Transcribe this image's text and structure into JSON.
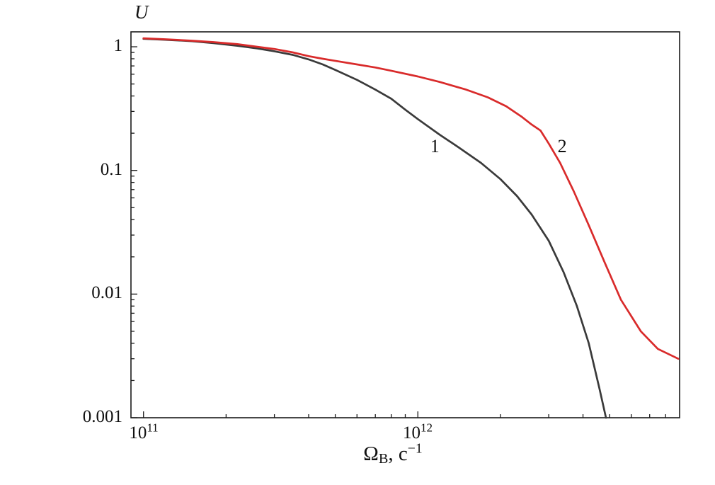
{
  "figure": {
    "background": "#ffffff",
    "ylabel": "U",
    "xlabel": {
      "base": "Ω",
      "sub": "B",
      "rest": ", c",
      "sup": "−1"
    }
  },
  "chart_data": {
    "type": "line",
    "title": "",
    "xlabel": "Ω_B, c^−1",
    "ylabel": "U",
    "xscale": "log",
    "yscale": "log",
    "xlim": [
      90000000000.0,
      9000000000000.0
    ],
    "ylim": [
      0.001,
      1.32
    ],
    "grid": false,
    "legend_position": "none",
    "frame_color": "#1a1a1a",
    "xticks": [
      {
        "base": "10",
        "exp": "11",
        "value": 100000000000.0
      },
      {
        "base": "10",
        "exp": "12",
        "value": 1000000000000.0
      }
    ],
    "yticks": [
      {
        "label": "1",
        "value": 1
      },
      {
        "label": "0.1",
        "value": 0.1
      },
      {
        "label": "0.01",
        "value": 0.01
      },
      {
        "label": "0.001",
        "value": 0.001
      }
    ],
    "series": [
      {
        "name": "1",
        "color": "#3a3a3a",
        "label_pos": {
          "x": 1150000000000.0,
          "y": 0.155
        },
        "x": [
          100000000000.0,
          120000000000.0,
          150000000000.0,
          180000000000.0,
          220000000000.0,
          260000000000.0,
          300000000000.0,
          350000000000.0,
          400000000000.0,
          450000000000.0,
          500000000000.0,
          600000000000.0,
          700000000000.0,
          800000000000.0,
          900000000000.0,
          1000000000000.0,
          1200000000000.0,
          1400000000000.0,
          1700000000000.0,
          2000000000000.0,
          2300000000000.0,
          2600000000000.0,
          3000000000000.0,
          3400000000000.0,
          3800000000000.0,
          4200000000000.0,
          4600000000000.0,
          4850000000000.0
        ],
        "y": [
          1.16,
          1.14,
          1.11,
          1.07,
          1.02,
          0.97,
          0.92,
          0.86,
          0.79,
          0.72,
          0.65,
          0.54,
          0.45,
          0.38,
          0.31,
          0.26,
          0.195,
          0.155,
          0.115,
          0.085,
          0.062,
          0.044,
          0.027,
          0.015,
          0.008,
          0.004,
          0.0017,
          0.001
        ]
      },
      {
        "name": "2",
        "color": "#d92b2b",
        "label_pos": {
          "x": 3350000000000.0,
          "y": 0.155
        },
        "x": [
          100000000000.0,
          120000000000.0,
          150000000000.0,
          180000000000.0,
          220000000000.0,
          260000000000.0,
          300000000000.0,
          350000000000.0,
          400000000000.0,
          450000000000.0,
          500000000000.0,
          600000000000.0,
          700000000000.0,
          800000000000.0,
          1000000000000.0,
          1200000000000.0,
          1500000000000.0,
          1800000000000.0,
          2100000000000.0,
          2400000000000.0,
          2600000000000.0,
          2800000000000.0,
          3000000000000.0,
          3300000000000.0,
          3700000000000.0,
          4200000000000.0,
          4800000000000.0,
          5500000000000.0,
          6500000000000.0,
          7500000000000.0,
          8900000000000.0
        ],
        "y": [
          1.17,
          1.15,
          1.12,
          1.09,
          1.05,
          1.0,
          0.96,
          0.9,
          0.84,
          0.8,
          0.77,
          0.72,
          0.68,
          0.64,
          0.575,
          0.52,
          0.45,
          0.39,
          0.33,
          0.27,
          0.235,
          0.21,
          0.165,
          0.115,
          0.068,
          0.036,
          0.018,
          0.009,
          0.005,
          0.0036,
          0.003
        ]
      }
    ],
    "annotations": [
      {
        "text": "1",
        "refers_to": "series 1"
      },
      {
        "text": "2",
        "refers_to": "series 2"
      }
    ]
  }
}
